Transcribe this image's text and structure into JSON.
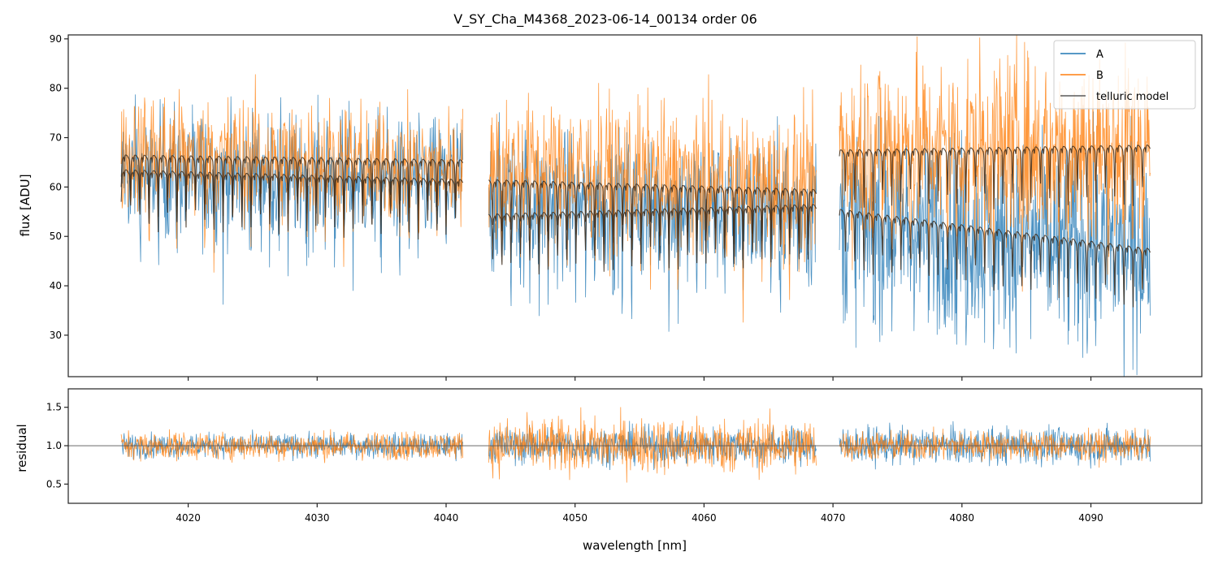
{
  "chart_data": [
    {
      "id": "flux-panel",
      "type": "line",
      "title": "V_SY_Cha_M4368_2023-06-14_00134  order 06",
      "xlabel": "",
      "ylabel": "flux [ADU]",
      "xlim": [
        4010.7,
        4098.6
      ],
      "ylim": [
        21.6,
        90.8
      ],
      "yticks": [
        30,
        40,
        50,
        60,
        70,
        80,
        90
      ],
      "ytick_labels": [
        "30",
        "40",
        "50",
        "60",
        "70",
        "80",
        "90"
      ],
      "xticks": [
        4020,
        4030,
        4040,
        4050,
        4060,
        4070,
        4080,
        4090
      ],
      "grid": false,
      "legend": {
        "placement": "top-right",
        "entries": [
          {
            "label": "A",
            "color": "#1f77b4"
          },
          {
            "label": "B",
            "color": "#ff7f0e"
          },
          {
            "label": "telluric model",
            "color": "#5a4a3a"
          }
        ]
      },
      "segments": [
        {
          "x_start": 4014.8,
          "x_end": 4041.3
        },
        {
          "x_start": 4043.3,
          "x_end": 4068.7
        },
        {
          "x_start": 4070.5,
          "x_end": 4094.6
        }
      ],
      "series": [
        {
          "name": "A",
          "color": "#1f77b4",
          "description": "noisy observed flux, trace A",
          "segment_levels": [
            {
              "continuum": [
                62,
                60
              ],
              "noise_sigma": 11
            },
            {
              "continuum": [
                56,
                54
              ],
              "noise_sigma": 12
            },
            {
              "continuum": [
                52,
                46
              ],
              "noise_sigma": 16
            }
          ]
        },
        {
          "name": "B",
          "color": "#ff7f0e",
          "description": "noisy observed flux, trace B",
          "segment_levels": [
            {
              "continuum": [
                66,
                63
              ],
              "noise_sigma": 10
            },
            {
              "continuum": [
                63,
                59
              ],
              "noise_sigma": 12
            },
            {
              "continuum": [
                67,
                67
              ],
              "noise_sigma": 16
            }
          ]
        },
        {
          "name": "telluric model (upper)",
          "color": "#3b2a1a",
          "segment_levels": [
            {
              "continuum": [
                65,
                64
              ]
            },
            {
              "continuum": [
                60,
                58
              ]
            },
            {
              "continuum": [
                66,
                67
              ]
            }
          ]
        },
        {
          "name": "telluric model (lower)",
          "color": "#3b2a1a",
          "segment_levels": [
            {
              "continuum": [
                62,
                60
              ]
            },
            {
              "continuum": [
                53,
                55
              ]
            },
            {
              "continuum": [
                54,
                46
              ]
            }
          ]
        }
      ],
      "absorption_line_spacing_nm": 0.72,
      "absorption_line_depth": [
        5,
        12
      ]
    },
    {
      "id": "residual-panel",
      "type": "line",
      "title": "",
      "xlabel": "wavelength [nm]",
      "ylabel": "residual",
      "xlim": [
        4010.7,
        4098.6
      ],
      "ylim": [
        0.25,
        1.74
      ],
      "yticks": [
        0.5,
        1.0,
        1.5
      ],
      "ytick_labels": [
        "0.5",
        "1.0",
        "1.5"
      ],
      "xticks": [
        4020,
        4030,
        4040,
        4050,
        4060,
        4070,
        4080,
        4090
      ],
      "xtick_labels": [
        "4020",
        "4030",
        "4040",
        "4050",
        "4060",
        "4070",
        "4080",
        "4090"
      ],
      "reference_line": 1.0,
      "grid": false,
      "series": [
        {
          "name": "A",
          "color": "#1f77b4",
          "segment_sigma": [
            0.13,
            0.2,
            0.2
          ]
        },
        {
          "name": "B",
          "color": "#ff7f0e",
          "segment_sigma": [
            0.15,
            0.3,
            0.16
          ]
        }
      ]
    }
  ]
}
